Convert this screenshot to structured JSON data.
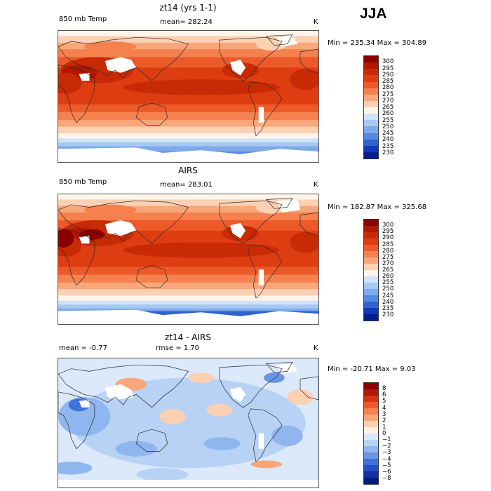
{
  "season": "JJA",
  "panels": [
    {
      "title": "zt14 (yrs 1-1)",
      "left_label": "850 mb Temp",
      "center_label": "mean= 282.24",
      "units": "K",
      "minmax": "Min = 235.34  Max = 304.89",
      "colorbar_labels": [
        "300",
        "295",
        "290",
        "285",
        "280",
        "275",
        "270",
        "265",
        "260",
        "255",
        "250",
        "245",
        "240",
        "235",
        "230"
      ],
      "colorbar_colors": [
        "#8b0000",
        "#b01800",
        "#c92a06",
        "#de3d12",
        "#ec5a2a",
        "#f4814e",
        "#f8a77a",
        "#fbd0b3",
        "#fff4ea",
        "#cfe2f8",
        "#a6c8f2",
        "#7eaaeb",
        "#5588e0",
        "#2f62d2",
        "#1437b8",
        "#001f8a"
      ]
    },
    {
      "title": "AIRS",
      "left_label": "850 mb Temp",
      "center_label": "mean= 283.01",
      "units": "K",
      "minmax": "Min = 182.87  Max = 325.68",
      "colorbar_labels": [
        "300",
        "295",
        "290",
        "285",
        "280",
        "275",
        "270",
        "265",
        "260",
        "255",
        "250",
        "245",
        "240",
        "235",
        "230"
      ],
      "colorbar_colors": [
        "#8b0000",
        "#b01800",
        "#c92a06",
        "#de3d12",
        "#ec5a2a",
        "#f4814e",
        "#f8a77a",
        "#fbd0b3",
        "#fff4ea",
        "#cfe2f8",
        "#a6c8f2",
        "#7eaaeb",
        "#5588e0",
        "#2f62d2",
        "#1437b8",
        "#001f8a"
      ]
    },
    {
      "title": "zt14 - AIRS",
      "left_label": "mean =   -0.77",
      "center_label": "rmse =    1.70",
      "units": "K",
      "minmax": "Min = -20.71  Max =    9.03",
      "colorbar_labels": [
        "8",
        "6",
        "5",
        "4",
        "3",
        "2",
        "1",
        "0",
        "−1",
        "−2",
        "−3",
        "−4",
        "−5",
        "−6",
        "−8"
      ],
      "colorbar_colors": [
        "#8b0000",
        "#b01800",
        "#d43414",
        "#ec5a2a",
        "#f4814e",
        "#f8a77a",
        "#fbd0b3",
        "#fff0e6",
        "#dbe9fb",
        "#b7d2f5",
        "#8fb6ee",
        "#6796e4",
        "#3f72d8",
        "#2450c4",
        "#1230a4",
        "#001a80"
      ]
    }
  ]
}
